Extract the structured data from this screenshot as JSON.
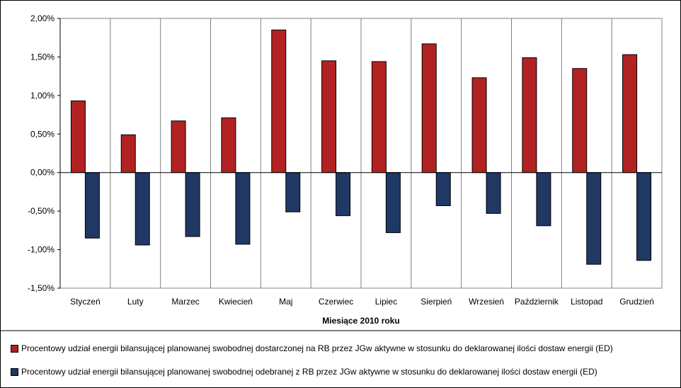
{
  "chart_data": {
    "type": "bar",
    "xlabel": "Miesiące 2010  roku",
    "ylabel": "",
    "ylim": [
      -0.015,
      0.02
    ],
    "yticks": [
      {
        "value": 0.02,
        "label": "2,00%"
      },
      {
        "value": 0.015,
        "label": "1,50%"
      },
      {
        "value": 0.01,
        "label": "1,00%"
      },
      {
        "value": 0.005,
        "label": "0,50%"
      },
      {
        "value": 0.0,
        "label": "0,00%"
      },
      {
        "value": -0.005,
        "label": "-0,50%"
      },
      {
        "value": -0.01,
        "label": "-1,00%"
      },
      {
        "value": -0.015,
        "label": "-1,50%"
      }
    ],
    "grid": "vertical",
    "legend_position": "bottom",
    "categories": [
      "Styczeń",
      "Luty",
      "Marzec",
      "Kwiecień",
      "Maj",
      "Czerwiec",
      "Lipiec",
      "Sierpień",
      "Wrzesień",
      "Październik",
      "Listopad",
      "Grudzień"
    ],
    "series": [
      {
        "name": "Procentowy udział energii bilansującej planowanej swobodnej dostarczonej na RB przez JGw aktywne w stosunku do deklarowanej ilości dostaw energii (ED)",
        "color": "#b22222",
        "values": [
          0.0093,
          0.0049,
          0.0067,
          0.0071,
          0.0185,
          0.0145,
          0.0144,
          0.0167,
          0.0123,
          0.0149,
          0.0135,
          0.0153
        ]
      },
      {
        "name": "Procentowy udział energii bilansującej planowanej swobodnej odebranej z RB przez JGw aktywne w stosunku do deklarowanej ilości dostaw energii (ED)",
        "color": "#1f3864",
        "values": [
          -0.0085,
          -0.0094,
          -0.0083,
          -0.0093,
          -0.0051,
          -0.0056,
          -0.0078,
          -0.0043,
          -0.0053,
          -0.0069,
          -0.0119,
          -0.0114
        ]
      }
    ]
  }
}
